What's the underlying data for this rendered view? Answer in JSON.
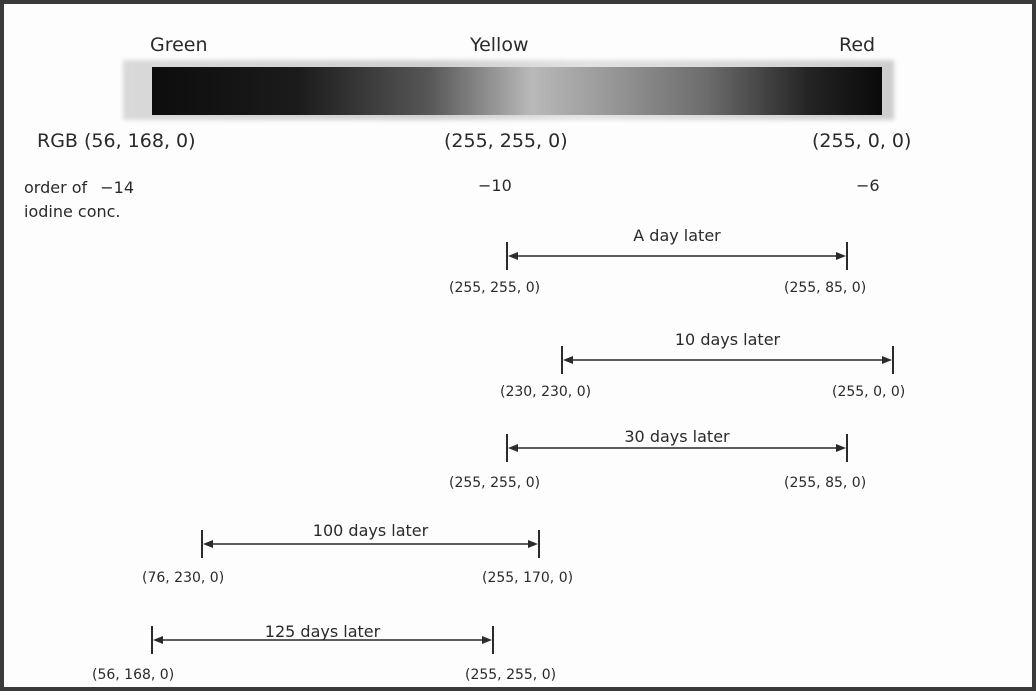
{
  "scale": {
    "colors": [
      "Green",
      "Yellow",
      "Red"
    ],
    "rgb_label": "RGB",
    "rgb_values": [
      "(56, 168, 0)",
      "(255, 255, 0)",
      "(255, 0, 0)"
    ],
    "order_label_line1": "order of",
    "order_label_line2": "iodine conc.",
    "orders": [
      "−14",
      "−10",
      "−6"
    ]
  },
  "ranges": [
    {
      "label": "A day later",
      "start": "(255, 255, 0)",
      "end": "(255, 85, 0)"
    },
    {
      "label": "10 days later",
      "start": "(230, 230, 0)",
      "end": "(255, 0, 0)"
    },
    {
      "label": "30 days later",
      "start": "(255, 255, 0)",
      "end": "(255, 85, 0)"
    },
    {
      "label": "100 days later",
      "start": "(76, 230, 0)",
      "end": "(255, 170, 0)"
    },
    {
      "label": "125 days later",
      "start": "(56, 168, 0)",
      "end": "(255, 255, 0)"
    }
  ]
}
